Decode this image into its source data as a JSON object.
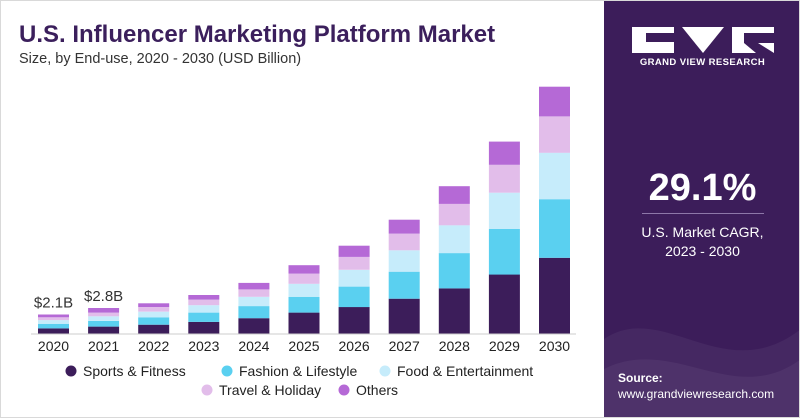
{
  "header": {
    "title": "U.S. Influencer Marketing Platform Market",
    "subtitle": "Size, by End-use, 2020 - 2030 (USD Billion)"
  },
  "sidebar": {
    "brand": "GRAND VIEW RESEARCH",
    "cagr_value": "29.1%",
    "cagr_label_line1": "U.S. Market CAGR,",
    "cagr_label_line2": "2023 - 2030",
    "source_heading": "Source:",
    "source_url": "www.grandviewresearch.com"
  },
  "colors": {
    "sidebar_bg": "#3c1d5a",
    "title": "#3b1f5c",
    "sports_fitness": "#3c1d5a",
    "fashion_lifestyle": "#5ad0f0",
    "food_entertainment": "#c6ecfb",
    "travel_holiday": "#e2bdea",
    "others": "#b569d6"
  },
  "chart_data": {
    "type": "bar",
    "stacked": true,
    "categories": [
      "2020",
      "2021",
      "2022",
      "2023",
      "2024",
      "2025",
      "2026",
      "2027",
      "2028",
      "2029",
      "2030"
    ],
    "series": [
      {
        "name": "Sports & Fitness",
        "color": "#3c1d5a",
        "values": [
          0.6,
          0.8,
          1.0,
          1.3,
          1.7,
          2.3,
          2.9,
          3.8,
          4.9,
          6.4,
          8.2
        ]
      },
      {
        "name": "Fashion & Lifestyle",
        "color": "#5ad0f0",
        "values": [
          0.5,
          0.6,
          0.8,
          1.0,
          1.3,
          1.7,
          2.2,
          2.9,
          3.8,
          4.9,
          6.3
        ]
      },
      {
        "name": "Food & Entertainment",
        "color": "#c6ecfb",
        "values": [
          0.4,
          0.5,
          0.6,
          0.8,
          1.0,
          1.4,
          1.8,
          2.3,
          3.0,
          3.9,
          5.0
        ]
      },
      {
        "name": "Travel & Holiday",
        "color": "#e2bdea",
        "values": [
          0.3,
          0.4,
          0.5,
          0.6,
          0.8,
          1.1,
          1.4,
          1.8,
          2.3,
          3.0,
          3.9
        ]
      },
      {
        "name": "Others",
        "color": "#b569d6",
        "values": [
          0.3,
          0.5,
          0.4,
          0.5,
          0.7,
          0.9,
          1.2,
          1.5,
          1.9,
          2.5,
          3.2
        ]
      }
    ],
    "data_labels": [
      {
        "category": "2020",
        "text": "$2.1B"
      },
      {
        "category": "2021",
        "text": "$2.8B"
      }
    ],
    "ylim": [
      0,
      27
    ],
    "grid": false,
    "legend_position": "bottom"
  }
}
